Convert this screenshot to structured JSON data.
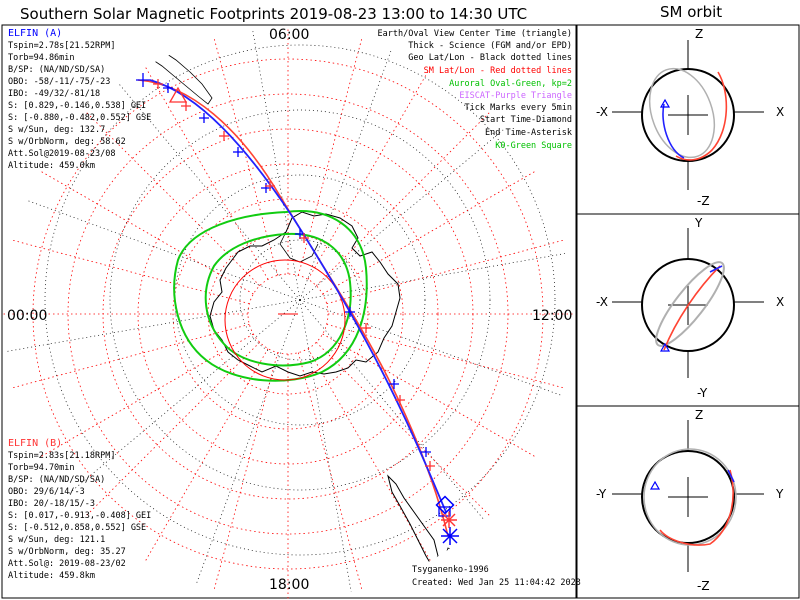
{
  "title": "Southern Solar Magnetic Footprints 2019-08-23 13:00 to 14:30 UTC",
  "orbit_title": "SM orbit",
  "mlt_labels": {
    "top": "06:00",
    "left": "00:00",
    "right": "12:00",
    "bottom": "18:00"
  },
  "legend": [
    {
      "text": "Earth/Oval View Center Time (triangle)",
      "color": "#000000"
    },
    {
      "text": "Thick - Science (FGM and/or EPD)",
      "color": "#000000"
    },
    {
      "text": "Geo Lat/Lon - Black dotted lines",
      "color": "#000000"
    },
    {
      "text": "SM Lat/Lon - Red dotted lines",
      "color": "#ff0000"
    },
    {
      "text": "Auroral Oval-Green, kp=2",
      "color": "#00c000"
    },
    {
      "text": "EISCAT-Purple Triangle",
      "color": "#cc66ff"
    },
    {
      "text": "Tick Marks every 5min",
      "color": "#000000"
    },
    {
      "text": "Start Time-Diamond",
      "color": "#000000"
    },
    {
      "text": "End Time-Asterisk",
      "color": "#000000"
    },
    {
      "text": "K0-Green Square",
      "color": "#00c000"
    }
  ],
  "elfin_a": {
    "name": "ELFIN (A)",
    "color": "#0000ff",
    "lines": [
      "Tspin=2.78s[21.52RPM]",
      "Torb=94.86min",
      "B/SP: (NA/ND/SD/SA)",
      "OBO: -58/-11/-75/-23",
      "IBO: -49/32/-81/18",
      "S: [0.829,-0.146,0.538] GEI",
      "S: [-0.880,-0.482,0.552] GSE",
      "S w/Sun, deg: 132.7",
      "S w/OrbNorm, deg: 58.62",
      "Att.Sol@2019-08-23/08",
      "Altitude: 459.0km"
    ]
  },
  "elfin_b": {
    "name": "ELFIN (B)",
    "color": "#ff3333",
    "lines": [
      "Tspin=2.83s[21.18RPM]",
      "Torb=94.70min",
      "B/SP: (NA/ND/SD/SA)",
      "OBO: 29/6/14/-3",
      "IBO: 20/-18/15/-3",
      "S: [0.017,-0.913,-0.408] GEI",
      "S: [-0.512,0.858,0.552] GSE",
      "S w/Sun, deg: 121.1",
      "S w/OrbNorm, deg: 35.27",
      "Att.Sol@: 2019-08-23/02",
      "Altitude: 459.8km"
    ]
  },
  "credits": {
    "model": "Tsyganenko-1996",
    "created": "Created: Wed Jan 25 11:04:42 2023"
  },
  "orbit_panels": [
    {
      "top": "Z",
      "bottom": "-Z",
      "left": "-X",
      "right": "X"
    },
    {
      "top": "Y",
      "bottom": "-Y",
      "left": "-X",
      "right": "X"
    },
    {
      "top": "Z",
      "bottom": "-Z",
      "left": "-Y",
      "right": "Y"
    }
  ],
  "colors": {
    "elfin_a": "#0000ff",
    "elfin_b": "#ff3333",
    "sm_grid": "#ff0000",
    "oval": "#00cc00",
    "orbit_gray": "#b0b0b0"
  },
  "chart_data": {
    "type": "polar-map",
    "projection": "southern hemisphere, SM coordinates",
    "grid": true
  }
}
